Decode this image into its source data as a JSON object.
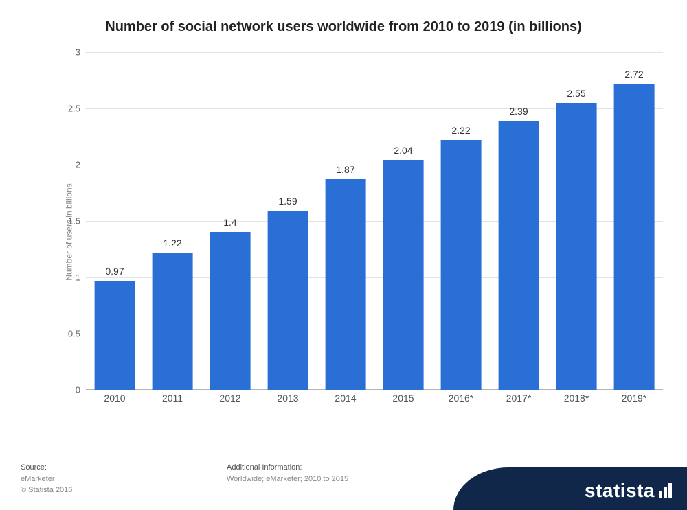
{
  "chart": {
    "type": "bar",
    "title": "Number of social network users worldwide from 2010 to 2019 (in billions)",
    "ylabel": "Number of users in billions",
    "categories": [
      "2010",
      "2011",
      "2012",
      "2013",
      "2014",
      "2015",
      "2016*",
      "2017*",
      "2018*",
      "2019*"
    ],
    "values": [
      0.97,
      1.22,
      1.4,
      1.59,
      1.87,
      2.04,
      2.22,
      2.39,
      2.55,
      2.72
    ],
    "value_labels": [
      "0.97",
      "1.22",
      "1.4",
      "1.59",
      "1.87",
      "2.04",
      "2.22",
      "2.39",
      "2.55",
      "2.72"
    ],
    "bar_color": "#2a6fd6",
    "background_color": "#ffffff",
    "grid_color": "#dfe3e6",
    "baseline_color": "#b0b5bb",
    "ylim": [
      0,
      3
    ],
    "ytick_step": 0.5,
    "ytick_labels": [
      "0",
      "0.5",
      "1",
      "1.5",
      "2",
      "2.5",
      "3"
    ],
    "bar_width_ratio": 0.7,
    "title_fontsize": 20,
    "label_fontsize": 14,
    "ylabel_fontsize": 12,
    "text_color": "#333333",
    "axis_text_color": "#666666"
  },
  "footer": {
    "source_label": "Source:",
    "source_value": "eMarketer",
    "copyright": "© Statista 2016",
    "additional_label": "Additional Information:",
    "additional_value": "Worldwide; eMarketer; 2010 to 2015"
  },
  "logo": {
    "text": "statista",
    "bg_color": "#10274a",
    "accent_color": "#2a5f9e",
    "text_color": "#ffffff"
  }
}
